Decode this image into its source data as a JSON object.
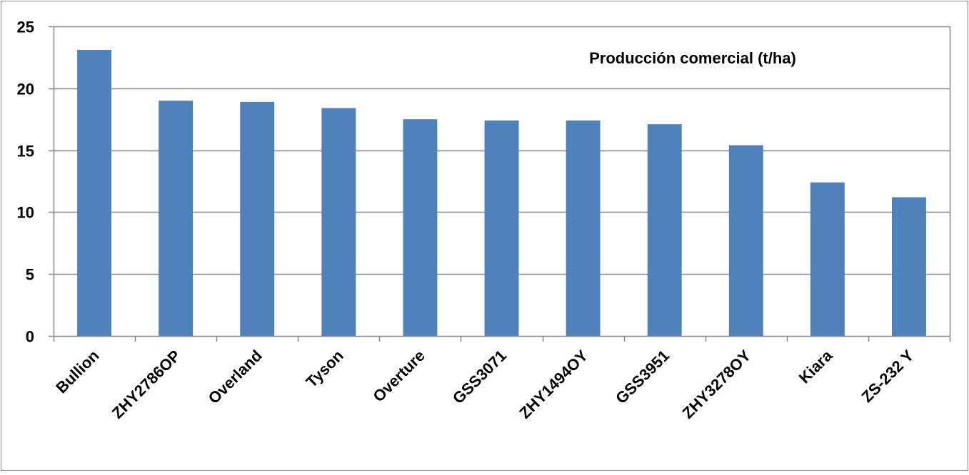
{
  "chart_data": {
    "type": "bar",
    "title": "Producción comercial (t/ha)",
    "xlabel": "",
    "ylabel": "",
    "categories": [
      "Bullion",
      "ZHY2786OP",
      "Overland",
      "Tyson",
      "Overture",
      "GSS3071",
      "ZHY1494OY",
      "GSS3951",
      "ZHY3278OY",
      "Kiara",
      "ZS-232 Y"
    ],
    "values": [
      23.1,
      19.0,
      18.9,
      18.4,
      17.5,
      17.4,
      17.4,
      17.1,
      15.4,
      12.4,
      11.2
    ],
    "ylim": [
      0,
      25
    ],
    "yticks": [
      0,
      5,
      10,
      15,
      20,
      25
    ],
    "grid": true,
    "legend": "none",
    "colors": {
      "bar": "#4F81BD",
      "grid": "#868686",
      "axis": "#868686",
      "frame": "#868686"
    }
  }
}
